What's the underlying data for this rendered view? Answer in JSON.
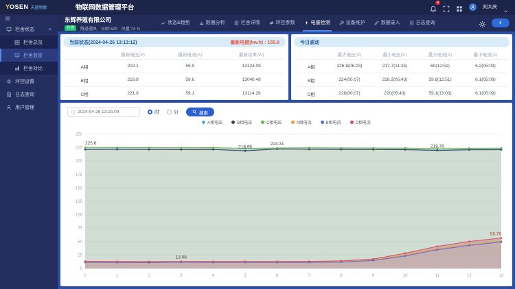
{
  "topbar": {
    "logo_main": "YOSEN",
    "logo_sub": "天盛物联",
    "title": "物联网数据管理平台",
    "notification_count": "4",
    "username": "刘大庆"
  },
  "sidebar": {
    "items": [
      {
        "id": "barn-status",
        "label": "栏舍状态",
        "icon": "monitor-icon",
        "type": "parent",
        "expanded": true
      },
      {
        "id": "barn-overview",
        "label": "栏舍总览",
        "icon": "overview-icon",
        "type": "child"
      },
      {
        "id": "barn-monitor",
        "label": "栏舍监管",
        "icon": "monitor-check-icon",
        "type": "child",
        "active": true
      },
      {
        "id": "barn-compare",
        "label": "栏舍对比",
        "icon": "compare-icon",
        "type": "child"
      },
      {
        "id": "env-settings",
        "label": "环控设置",
        "icon": "gear-icon",
        "type": "item"
      },
      {
        "id": "log-query",
        "label": "日志查询",
        "icon": "file-icon",
        "type": "item"
      },
      {
        "id": "user-management",
        "label": "用户管理",
        "icon": "user-icon",
        "type": "item"
      }
    ]
  },
  "header": {
    "company": "东辉养殖有限公司",
    "online_badge": "在线",
    "mode": "隧道通风",
    "age": "日龄:529",
    "wind": "风量:74 %",
    "tabs": [
      {
        "id": "status-trend",
        "label": "状态&趋势",
        "icon": "trend-icon"
      },
      {
        "id": "data-analysis",
        "label": "数据分析",
        "icon": "analysis-icon"
      },
      {
        "id": "barn-detail",
        "label": "栏舍详情",
        "icon": "detail-icon"
      },
      {
        "id": "env-params",
        "label": "环控参数",
        "icon": "params-icon"
      },
      {
        "id": "power-monitor",
        "label": "电量检测",
        "icon": "lightning-icon",
        "active": true
      },
      {
        "id": "device-maintain",
        "label": "设备维护",
        "icon": "wrench-icon"
      },
      {
        "id": "data-entry",
        "label": "数据录入",
        "icon": "edit-icon"
      },
      {
        "id": "log-query-tab",
        "label": "日志查询",
        "icon": "log-icon"
      }
    ]
  },
  "panel_current": {
    "title": "当前状态(2024-04-26 13:13:12)",
    "energy_label": "最新电度(kw.h) : 155.8",
    "columns": [
      "",
      "最新电压(V)",
      "最新电流(A)",
      "最新功率(W)"
    ],
    "rows": [
      [
        "A相",
        "219.1",
        "59.9",
        "13124.09"
      ],
      [
        "B相",
        "218.8",
        "59.6",
        "13040.48"
      ],
      [
        "C相",
        "221.9",
        "59.1",
        "13114.29"
      ]
    ]
  },
  "panel_today": {
    "title": "今日波动",
    "columns": [
      "",
      "最大电压(V)",
      "最小电压(V)",
      "最大电流(A)",
      "最小电流(A)"
    ],
    "rows": [
      [
        "A相",
        "226.8(06:23)",
        "217.7(11:25)",
        "60(12:51)",
        "6.2(05:09)"
      ],
      [
        "B相",
        "224(00:07)",
        "216.2(05:43)",
        "59.6(12:51)",
        "6.1(05:09)"
      ],
      [
        "C相",
        "228(00:07)",
        "220(05:43)",
        "59.1(13:03)",
        "6.1(05:09)"
      ]
    ]
  },
  "chart_panel": {
    "datetime": "2024-04-26 13:15:09",
    "radio_hour": "时",
    "radio_minute": "分",
    "search_label": "搜索"
  },
  "chart_data": {
    "type": "line",
    "x": [
      "0",
      "1",
      "2",
      "3",
      "4",
      "5",
      "6",
      "7",
      "8",
      "9",
      "10",
      "11",
      "12",
      "13"
    ],
    "xlabel": "",
    "ylabel": "",
    "ylim": [
      0,
      250
    ],
    "ystep": 25,
    "grid": true,
    "legend_position": "top-center",
    "series": [
      {
        "name": "A相电压",
        "color": "#5aa8e8",
        "values": [
          222.2,
          222.4,
          222.1,
          221.9,
          222.0,
          219.9,
          222.9,
          222.5,
          222.3,
          222.1,
          221.8,
          220.6,
          221.7,
          221.9
        ]
      },
      {
        "name": "B相电压",
        "color": "#3d4350",
        "values": [
          221.6,
          221.8,
          221.5,
          221.4,
          221.5,
          218.96,
          222.4,
          221.9,
          221.7,
          221.5,
          221.2,
          219.76,
          221.0,
          221.2
        ]
      },
      {
        "name": "C相电压",
        "color": "#67b84a",
        "values": [
          225.6,
          225.3,
          225.1,
          225.0,
          225.1,
          223.6,
          224.31,
          224.7,
          224.5,
          224.3,
          224.1,
          223.3,
          223.9,
          224.1
        ],
        "area": "rgba(150,180,158,0.45)"
      },
      {
        "name": "A相电流",
        "color": "#f59a23",
        "values": [
          11.9,
          11.6,
          11.4,
          12.2,
          11.8,
          12.0,
          11.7,
          11.9,
          12.5,
          15.4,
          24.8,
          36.2,
          44.3,
          50.8
        ]
      },
      {
        "name": "B相电流",
        "color": "#5b6be0",
        "values": [
          11.3,
          11.1,
          10.9,
          11.6,
          11.2,
          11.4,
          11.1,
          11.3,
          11.9,
          14.8,
          23.4,
          34.8,
          42.8,
          49.2
        ]
      },
      {
        "name": "C相电流",
        "color": "#e4485e",
        "values": [
          13.4,
          13.1,
          12.9,
          13.08,
          13.0,
          13.2,
          13.1,
          13.3,
          14.1,
          17.6,
          28.3,
          41.2,
          50.2,
          56.76
        ],
        "area": "rgba(186,140,148,0.55)"
      }
    ],
    "point_labels": [
      {
        "series": "C相电压",
        "index": 0,
        "text": "225.6"
      },
      {
        "series": "B相电压",
        "index": 5,
        "text": "218.96"
      },
      {
        "series": "C相电压",
        "index": 6,
        "text": "224.31"
      },
      {
        "series": "B相电压",
        "index": 11,
        "text": "219.76"
      },
      {
        "series": "C相电流",
        "index": 3,
        "text": "13.08"
      },
      {
        "series": "C相电流",
        "index": 13,
        "text": "56.76",
        "color": "#c0392b"
      }
    ]
  }
}
